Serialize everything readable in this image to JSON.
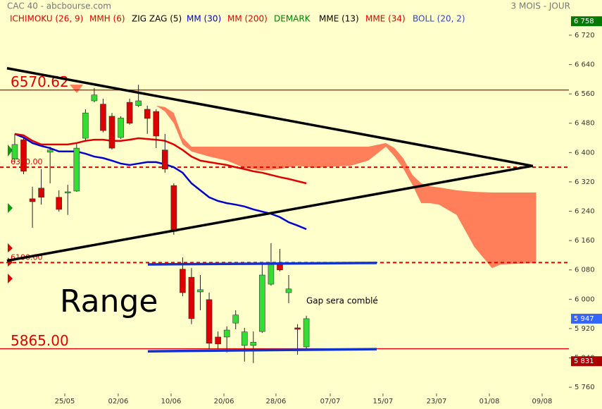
{
  "header": {
    "title": "CAC 40 - abcbourse.com",
    "period": "3 MOIS - JOUR"
  },
  "chart_data": {
    "type": "candlestick",
    "indicators": [
      {
        "name": "ICHIMOKU (26, 9)",
        "color": "#dd0000",
        "x": [
          16,
          17,
          18,
          19,
          20,
          22,
          24,
          26,
          28,
          30,
          32,
          34,
          36,
          38,
          40,
          42,
          43,
          44,
          45,
          46,
          47,
          48,
          50,
          52,
          54,
          55,
          59
        ],
        "upper": [
          6528,
          6524,
          6508,
          6441,
          6416,
          6416,
          6416,
          6416,
          6416,
          6416,
          6416,
          6416,
          6416,
          6416,
          6416,
          6426,
          6412,
          6383,
          6339,
          6316,
          6308,
          6305,
          6297,
          6293,
          6291,
          6291,
          6291
        ],
        "lower": [
          6528,
          6512,
          6480,
          6422,
          6403,
          6389,
          6378,
          6358,
          6351,
          6355,
          6364,
          6358,
          6362,
          6364,
          6378,
          6416,
          6389,
          6355,
          6312,
          6262,
          6262,
          6258,
          6230,
          6143,
          6085,
          6095,
          6099
        ],
        "fill": "#ff7f5a"
      },
      {
        "name": "MMH (6)",
        "color": "#dd0000"
      },
      {
        "name": "ZIG ZAG (5)",
        "color": "#000000"
      },
      {
        "name": "MM (30)",
        "color": "#0000cc",
        "values": [
          6451,
          6441,
          6426,
          6418,
          6412,
          6403,
          6403,
          6403,
          6397,
          6389,
          6385,
          6378,
          6370,
          6366,
          6370,
          6374,
          6374,
          6368,
          6360,
          6345,
          6316,
          6297,
          6278,
          6268,
          6262,
          6258,
          6253,
          6245,
          6239,
          6233,
          6224,
          6210,
          6201,
          6191
        ]
      },
      {
        "name": "MM (200)",
        "color": "#dd0000",
        "values": [
          6451,
          6447,
          6432,
          6422,
          6422,
          6422,
          6422,
          6426,
          6432,
          6435,
          6435,
          6432,
          6432,
          6435,
          6439,
          6437,
          6435,
          6432,
          6422,
          6407,
          6389,
          6378,
          6374,
          6370,
          6366,
          6360,
          6355,
          6349,
          6345,
          6339,
          6333,
          6328,
          6322,
          6316
        ]
      },
      {
        "name": "DEMARK",
        "color": "#008000"
      },
      {
        "name": "MME (13)",
        "color": "#000000"
      },
      {
        "name": "MME (34)",
        "color": "#dd0000"
      },
      {
        "name": "BOLL (20, 2)",
        "color": "#3344bb"
      }
    ],
    "candles": {
      "open": [
        6383,
        6435,
        6274,
        6303,
        6401,
        6278,
        6290,
        6295,
        6439,
        6541,
        6532,
        6499,
        6441,
        6537,
        6528,
        6518,
        6512,
        6407,
        6310,
        6082,
        6060,
        6020,
        5999,
        5897,
        5897,
        5935,
        5874,
        5874,
        5912,
        6041,
        6095,
        6018,
        5922,
        5870
      ],
      "high": [
        6451,
        6441,
        6307,
        6355,
        6416,
        6297,
        6312,
        6426,
        6518,
        6576,
        6547,
        6508,
        6499,
        6547,
        6585,
        6528,
        6518,
        6451,
        6316,
        6114,
        6085,
        6066,
        6018,
        5912,
        5926,
        5970,
        5922,
        5912,
        6095,
        6153,
        6137,
        6066,
        5932,
        5955
      ],
      "low": [
        6374,
        6341,
        6195,
        6258,
        6316,
        6239,
        6230,
        6293,
        6432,
        6537,
        6455,
        6408,
        6437,
        6476,
        6524,
        6451,
        6412,
        6345,
        6176,
        6008,
        5932,
        5970,
        5864,
        5864,
        5855,
        5918,
        5830,
        5826,
        5908,
        6037,
        6076,
        5989,
        5849,
        5860
      ],
      "close": [
        6422,
        6349,
        6266,
        6278,
        6407,
        6245,
        6293,
        6412,
        6508,
        6557,
        6460,
        6412,
        6494,
        6480,
        6541,
        6493,
        6445,
        6355,
        6185,
        6018,
        5947,
        6026,
        5880,
        5878,
        5916,
        5957,
        5911,
        5883,
        6066,
        6095,
        6080,
        6028,
        5918,
        5947
      ],
      "up_color": "#33dd33",
      "down_color": "#dd0000"
    },
    "xlim": [
      -1.67,
      62.71
    ],
    "xticks": [
      {
        "value": 5.66,
        "label": "25/05"
      },
      {
        "value": 11.71,
        "label": "02/06"
      },
      {
        "value": 17.69,
        "label": "10/06"
      },
      {
        "value": 23.67,
        "label": "20/06"
      },
      {
        "value": 29.56,
        "label": "28/06"
      },
      {
        "value": 35.7,
        "label": "07/07"
      },
      {
        "value": 41.67,
        "label": "15/07"
      },
      {
        "value": 47.73,
        "label": "23/07"
      },
      {
        "value": 53.71,
        "label": "01/08"
      },
      {
        "value": 59.68,
        "label": "09/08"
      }
    ],
    "ylim": [
      5743,
      6816
    ],
    "yticks": [
      {
        "value": 5760,
        "label": "5 760"
      },
      {
        "value": 5840,
        "label": "5 840"
      },
      {
        "value": 5920,
        "label": "5 920"
      },
      {
        "value": 6000,
        "label": "6 000"
      },
      {
        "value": 6080,
        "label": "6 080"
      },
      {
        "value": 6160,
        "label": "6 160"
      },
      {
        "value": 6240,
        "label": "6 240"
      },
      {
        "value": 6320,
        "label": "6 320"
      },
      {
        "value": 6400,
        "label": "6 400"
      },
      {
        "value": 6480,
        "label": "6 480"
      },
      {
        "value": 6560,
        "label": "6 560"
      },
      {
        "value": 6640,
        "label": "6 640"
      },
      {
        "value": 6720,
        "label": "6 720"
      }
    ],
    "levels": [
      {
        "value": 6570.62,
        "label": "6570.62",
        "style": "solid",
        "color": "#dd0000"
      },
      {
        "value": 5865,
        "label": "5865.00",
        "style": "solid",
        "color": "#dd0000"
      },
      {
        "value": 6360,
        "label": "6360.00",
        "style": "dashed",
        "color": "#dd0000"
      },
      {
        "value": 6100,
        "label": "6100.00",
        "style": "dashed",
        "color": "#dd0000"
      }
    ],
    "trendlines": [
      {
        "x": [
          -0.88,
          58.49
        ],
        "y": [
          6630,
          6364
        ],
        "color": "#000000"
      },
      {
        "x": [
          -0.88,
          58.65
        ],
        "y": [
          6105,
          6364
        ],
        "color": "#000000"
      },
      {
        "x": [
          15.06,
          40.96
        ],
        "y": [
          6095,
          6099
        ],
        "color": "#1133cc"
      },
      {
        "x": [
          15.06,
          40.96
        ],
        "y": [
          5858,
          5864
        ],
        "color": "#1133cc"
      }
    ],
    "price_badges": [
      {
        "value": 6758,
        "label": "6 758",
        "color": "#007a00"
      },
      {
        "value": 5947,
        "label": "5 947",
        "color": "#3366ff"
      },
      {
        "value": 5831,
        "label": "5 831",
        "color": "#aa0000"
      }
    ],
    "annotations": [
      "Range",
      "Gap sera comblé"
    ]
  }
}
